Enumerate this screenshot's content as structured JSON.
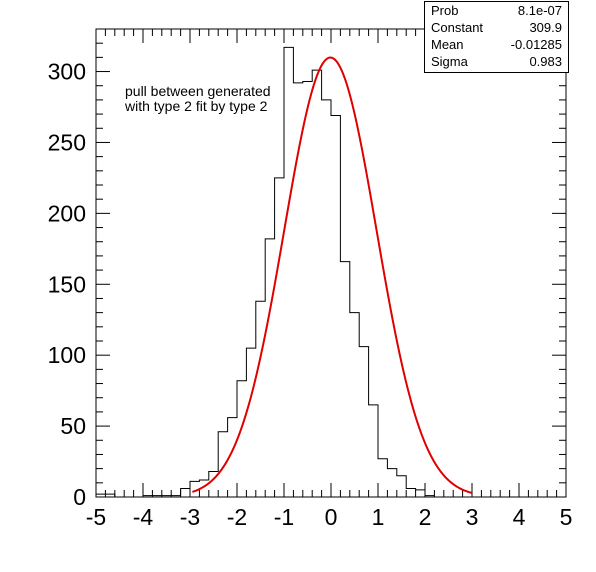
{
  "chart_data": {
    "type": "histogram",
    "title": "",
    "xlabel": "",
    "ylabel": "",
    "xlim": [
      -5,
      5
    ],
    "ylim": [
      0,
      330
    ],
    "xticks": [
      "-5",
      "-4",
      "-3",
      "-2",
      "-1",
      "0",
      "1",
      "2",
      "3",
      "4",
      "5"
    ],
    "yticks": [
      "0",
      "50",
      "100",
      "150",
      "200",
      "250",
      "300"
    ],
    "bin_width": 0.2,
    "bin_edges_start": -5.0,
    "counts": [
      2,
      2,
      0,
      0,
      0,
      1,
      1,
      1,
      1,
      6,
      11,
      12,
      18,
      46,
      56,
      82,
      105,
      138,
      182,
      225,
      317,
      292,
      293,
      301,
      280,
      269,
      166,
      130,
      106,
      65,
      27,
      20,
      15,
      6,
      5,
      1,
      0,
      0,
      0,
      0,
      0,
      0,
      0,
      0,
      0,
      0,
      0,
      0,
      0,
      0
    ],
    "fit": {
      "function": "gaus",
      "color": "#e00000",
      "x_range": [
        -2.95,
        3.0
      ]
    },
    "annotations": [
      "pull between generated",
      "with type 2 fit by type 2"
    ],
    "stats": [
      {
        "label": "Prob",
        "value": "8.1e-07"
      },
      {
        "label": "Constant",
        "value": "309.9"
      },
      {
        "label": "Mean",
        "value": "-0.01285"
      },
      {
        "label": "Sigma",
        "value": "0.983"
      }
    ]
  }
}
